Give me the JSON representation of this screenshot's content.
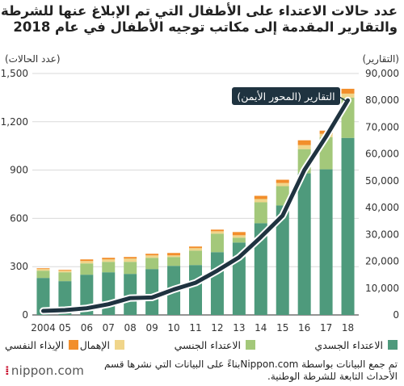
{
  "title_line1": "عدد حالات الاعتداء على الأطفال التي تم الإبلاغ عنها للشرطة",
  "title_line2": "والتقارير المقدمة إلى مكاتب توجيه الأطفال في عام 2018",
  "chart_data": {
    "type": "bar",
    "stacked": true,
    "categories": [
      "2004",
      "05",
      "06",
      "07",
      "08",
      "09",
      "10",
      "11",
      "12",
      "13",
      "14",
      "15",
      "16",
      "17",
      "18"
    ],
    "left_axis": {
      "label": "(عدد الحالات)",
      "ylim": [
        0,
        1500
      ],
      "ticks": [
        "0",
        "300",
        "600",
        "900",
        "1,200",
        "1,500"
      ]
    },
    "right_axis": {
      "label": "(التقارير)",
      "ylim": [
        0,
        90000
      ],
      "ticks": [
        "0",
        "10,000",
        "20,000",
        "30,000",
        "40,000",
        "50,000",
        "60,000",
        "70,000",
        "80,000",
        "90,000"
      ]
    },
    "series": [
      {
        "name": "الاعتداء الجسدي",
        "color": "#4e9a7c",
        "values": [
          230,
          210,
          250,
          265,
          255,
          285,
          305,
          310,
          390,
          450,
          570,
          680,
          880,
          905,
          1100
        ]
      },
      {
        "name": "الاعتداء الجنسي",
        "color": "#a3c87a",
        "values": [
          45,
          55,
          70,
          65,
          75,
          70,
          55,
          90,
          115,
          30,
          130,
          120,
          150,
          200,
          250
        ]
      },
      {
        "name": "الإهمال",
        "color": "#f0d58a",
        "values": [
          10,
          10,
          15,
          15,
          20,
          15,
          10,
          15,
          15,
          15,
          20,
          20,
          25,
          20,
          25
        ]
      },
      {
        "name": "الإيذاء النفسي",
        "color": "#f28e2b",
        "values": [
          5,
          5,
          10,
          10,
          10,
          10,
          15,
          10,
          10,
          20,
          20,
          20,
          30,
          20,
          30
        ]
      }
    ],
    "line": {
      "name": "التقارير (المحور الأيمن)",
      "color": "#1f3340",
      "axis": "right",
      "values": [
        1500,
        1800,
        2500,
        4000,
        6300,
        6500,
        9500,
        12000,
        16500,
        21500,
        29000,
        37000,
        54000,
        66500,
        80000
      ]
    }
  },
  "legend_items": [
    {
      "label": "الاعتداء الجسدي",
      "color": "#4e9a7c"
    },
    {
      "label": "الاعتداء الجنسي",
      "color": "#a3c87a"
    },
    {
      "label": "الإهمال",
      "color": "#f0d58a"
    },
    {
      "label": "الإيذاء النفسي",
      "color": "#f28e2b"
    }
  ],
  "note_line1": "تم جمع البيانات بواسطة Nippon.comبناءً على البيانات التي نشرها قسم",
  "note_line2": "الأحداث التابعة للشرطة الوطنية.",
  "logo_text": "nippon.com",
  "logo_dots": "⁞"
}
